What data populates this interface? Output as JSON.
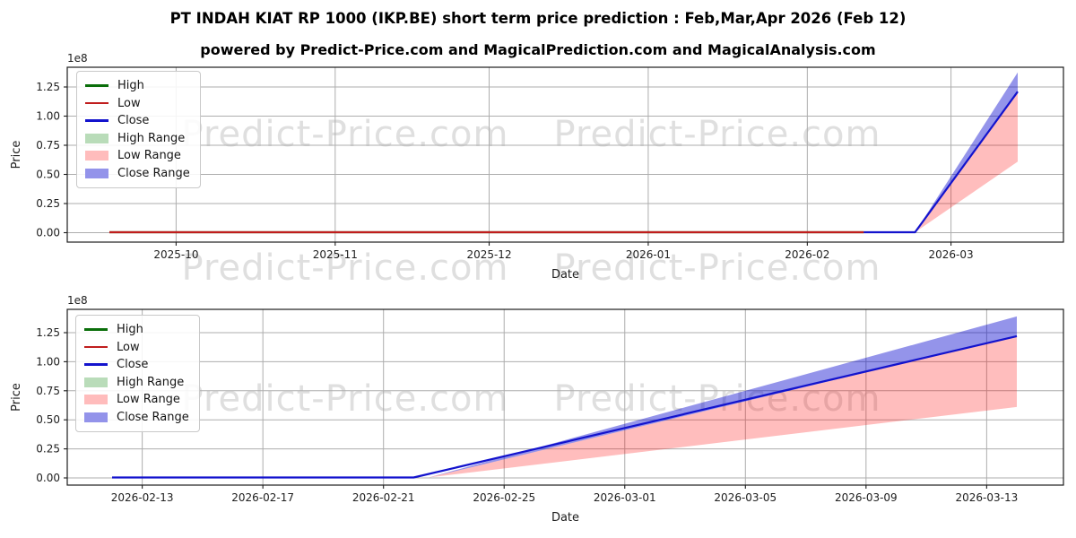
{
  "title": "PT INDAH KIAT RP 1000 (IKP.BE) short term price prediction : Feb,Mar,Apr 2026 (Feb 12)",
  "subtitle": "powered by Predict-Price.com and MagicalPrediction.com and MagicalAnalysis.com",
  "watermark": {
    "text": "Predict-Price.com",
    "color": "#c9c9c9"
  },
  "colors": {
    "high_line": "#0a6e0a",
    "low_line": "#c01d1d",
    "close_line": "#1313cd",
    "high_range": "rgba(0,128,0,0.27)",
    "low_range": "rgba(255,0,0,0.26)",
    "close_range": "rgba(0,0,205,0.42)",
    "grid": "#adadad"
  },
  "legend": {
    "items": [
      {
        "label": "High",
        "type": "line",
        "color": "#0a6e0a"
      },
      {
        "label": "Low",
        "type": "line",
        "color": "#c01d1d"
      },
      {
        "label": "Close",
        "type": "line",
        "color": "#1313cd"
      },
      {
        "label": "High Range",
        "type": "patch",
        "color": "#b9dcb9"
      },
      {
        "label": "Low Range",
        "type": "patch",
        "color": "#ffbcbc"
      },
      {
        "label": "Close Range",
        "type": "patch",
        "color": "#9393ea"
      }
    ]
  },
  "chart_data": [
    {
      "type": "line",
      "name": "full-history-and-prediction",
      "xlabel": "Date",
      "ylabel": "Price",
      "y_offset_label": "1e8",
      "x_domain_days": [
        0,
        177
      ],
      "x_ticks": [
        {
          "label": "2025-10",
          "day": 13
        },
        {
          "label": "2025-11",
          "day": 44
        },
        {
          "label": "2025-12",
          "day": 74
        },
        {
          "label": "2026-01",
          "day": 105
        },
        {
          "label": "2026-02",
          "day": 136
        },
        {
          "label": "2026-03",
          "day": 164
        }
      ],
      "y_ticks": [
        0,
        0.25,
        0.5,
        0.75,
        1.0,
        1.25
      ],
      "y_tick_labels": [
        "0.00",
        "0.25",
        "0.50",
        "0.75",
        "1.00",
        "1.25"
      ],
      "ylim": [
        -0.081,
        1.419
      ],
      "grid": true,
      "legend_position": "upper-left",
      "bands": [
        {
          "name": "Close Range",
          "color": "rgba(0,0,205,0.42)",
          "x": [
            157,
            177
          ],
          "top": [
            0.004,
            1.375
          ],
          "bottom": [
            0.004,
            1.21
          ]
        },
        {
          "name": "Low Range",
          "color": "rgba(255,0,0,0.26)",
          "x": [
            157,
            177
          ],
          "top": [
            0.004,
            1.21
          ],
          "bottom": [
            0.004,
            0.61
          ]
        }
      ],
      "series": [
        {
          "name": "High",
          "color": "#0a6e0a",
          "x": [
            0,
            147
          ],
          "y": [
            0.004,
            0.004
          ]
        },
        {
          "name": "Low",
          "color": "#c01d1d",
          "x": [
            0,
            147
          ],
          "y": [
            0.004,
            0.004
          ]
        },
        {
          "name": "Close",
          "color": "#1313cd",
          "x": [
            147,
            157,
            177
          ],
          "y": [
            0.004,
            0.004,
            1.21
          ]
        }
      ]
    },
    {
      "type": "line",
      "name": "prediction-window-zoom",
      "xlabel": "Date",
      "ylabel": "Price",
      "y_offset_label": "1e8",
      "x_domain_days": [
        0,
        30
      ],
      "x_ticks": [
        {
          "label": "2026-02-13",
          "day": 1
        },
        {
          "label": "2026-02-17",
          "day": 5
        },
        {
          "label": "2026-02-21",
          "day": 9
        },
        {
          "label": "2026-02-25",
          "day": 13
        },
        {
          "label": "2026-03-01",
          "day": 17
        },
        {
          "label": "2026-03-05",
          "day": 21
        },
        {
          "label": "2026-03-09",
          "day": 25
        },
        {
          "label": "2026-03-13",
          "day": 29
        }
      ],
      "y_ticks": [
        0,
        0.25,
        0.5,
        0.75,
        1.0,
        1.25
      ],
      "y_tick_labels": [
        "0.00",
        "0.25",
        "0.50",
        "0.75",
        "1.00",
        "1.25"
      ],
      "ylim": [
        -0.062,
        1.45
      ],
      "grid": true,
      "legend_position": "upper-left",
      "bands": [
        {
          "name": "Close Range",
          "color": "rgba(0,0,205,0.42)",
          "x": [
            10.5,
            30
          ],
          "top": [
            0.004,
            1.39
          ],
          "bottom": [
            0.004,
            1.22
          ]
        },
        {
          "name": "Low Range",
          "color": "rgba(255,0,0,0.26)",
          "x": [
            10.5,
            30
          ],
          "top": [
            0.004,
            1.22
          ],
          "bottom": [
            0.004,
            0.61
          ]
        }
      ],
      "series": [
        {
          "name": "Close",
          "color": "#1313cd",
          "x": [
            0,
            10,
            30
          ],
          "y": [
            0.004,
            0.004,
            1.22
          ]
        }
      ]
    }
  ]
}
